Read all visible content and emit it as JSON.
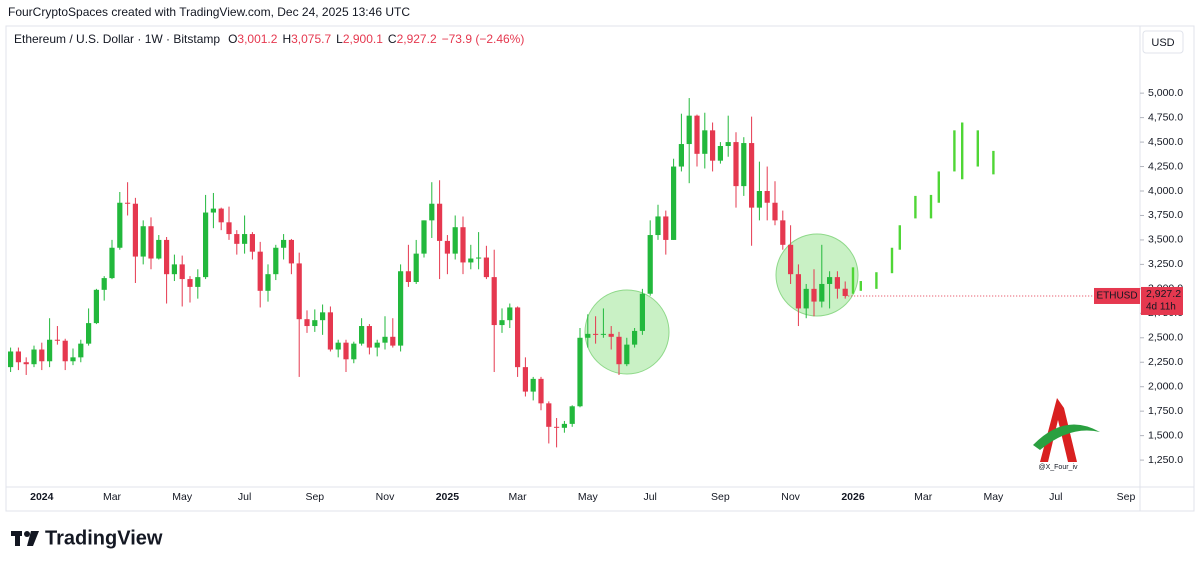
{
  "header": {
    "caption": "FourCryptoSpaces created with TradingView.com, Dec 24, 2025 13:46 UTC",
    "brand": "TradingView",
    "watermark": "@X_Four_iv"
  },
  "chart_data": {
    "type": "candlestick",
    "title": "Ethereum / U.S. Dollar · 1W · Bitstamp",
    "legend_values": [
      {
        "label": "O",
        "value": "3,001.2"
      },
      {
        "label": "H",
        "value": "3,075.7"
      },
      {
        "label": "L",
        "value": "2,900.1"
      },
      {
        "label": "C",
        "value": "2,927.2"
      }
    ],
    "change": "−73.9 (−2.46%)",
    "currency": "USD",
    "price_tag": {
      "symbol": "ETHUSD",
      "price": "2,927.2",
      "countdown": "4d 11h"
    },
    "up_color": "#22b83c",
    "down_color": "#e5384f",
    "categories": [
      null,
      null,
      null,
      null,
      "2024",
      null,
      null,
      null,
      null,
      null,
      null,
      null,
      null,
      "Mar",
      null,
      null,
      null,
      null,
      null,
      null,
      null,
      null,
      "May",
      null,
      null,
      null,
      null,
      null,
      null,
      null,
      "Jul",
      null,
      null,
      null,
      null,
      null,
      null,
      null,
      null,
      "Sep",
      null,
      null,
      null,
      null,
      null,
      null,
      null,
      null,
      "Nov",
      null,
      null,
      null,
      null,
      null,
      null,
      null,
      "2025",
      null,
      null,
      null,
      null,
      null,
      null,
      null,
      null,
      "Mar",
      null,
      null,
      null,
      null,
      null,
      null,
      null,
      null,
      "May",
      null,
      null,
      null,
      null,
      null,
      null,
      null,
      "Jul",
      null,
      null,
      null,
      null,
      null,
      null,
      null,
      null,
      "Sep",
      null,
      null,
      null,
      null,
      null,
      null,
      null,
      null,
      "Nov",
      null,
      null,
      null,
      null,
      null,
      null,
      null,
      "2026",
      null,
      null,
      null,
      null,
      null,
      null,
      null,
      null,
      "Mar",
      null,
      null,
      null,
      null,
      null,
      null,
      null,
      null,
      "May",
      null,
      null,
      null,
      null,
      null,
      null,
      null,
      "Jul",
      null,
      null,
      null,
      null,
      null,
      null,
      null,
      null,
      "Sep",
      null
    ],
    "open": [
      2200,
      2360,
      2250,
      2230,
      2380,
      2260,
      2480,
      2470,
      2260,
      2300,
      2440,
      2650,
      2990,
      3110,
      3420,
      3880,
      3870,
      3330,
      3640,
      3310,
      3500,
      3150,
      3250,
      3100,
      3020,
      3120,
      3780,
      3820,
      3680,
      3560,
      3460,
      3560,
      3380,
      2980,
      3150,
      3420,
      3500,
      3260,
      2690,
      2620,
      2680,
      2760,
      2380,
      2450,
      2280,
      2440,
      2620,
      2400,
      2450,
      2510,
      2420,
      3180,
      3070,
      3360,
      3700,
      3870,
      3490,
      3360,
      3630,
      3270,
      3310,
      3320,
      3120,
      2630,
      2680,
      2810,
      2200,
      1950,
      2080,
      1830,
      1590,
      1580,
      1620,
      1800,
      2500,
      2540,
      2530,
      2540,
      2510,
      2230,
      2430,
      2570,
      2950,
      3550,
      3740,
      3500,
      4250,
      4480,
      4770,
      4380,
      4620,
      4310,
      4460,
      4500,
      4050,
      4490,
      3830,
      4000,
      3880,
      3700,
      3450,
      3150,
      2800,
      3000,
      2870,
      3050,
      3120,
      3001.2,
      null,
      null,
      null,
      null,
      null,
      null,
      null,
      null,
      null,
      null,
      null,
      null,
      null,
      null,
      null,
      null,
      null,
      null,
      null,
      null,
      null,
      null,
      null,
      null,
      null,
      null,
      null,
      null,
      null,
      null,
      null,
      null,
      null,
      null,
      null,
      null,
      null
    ],
    "high": [
      2400,
      2400,
      2300,
      2420,
      2450,
      2700,
      2620,
      2490,
      2390,
      2480,
      2800,
      3000,
      3130,
      3500,
      3990,
      4090,
      3930,
      3700,
      3730,
      3550,
      3530,
      3350,
      3340,
      3130,
      3200,
      3960,
      3980,
      3830,
      3840,
      3600,
      3750,
      3580,
      3480,
      3250,
      3450,
      3560,
      3510,
      3370,
      2780,
      2790,
      2840,
      2820,
      2480,
      2480,
      2460,
      2700,
      2640,
      2480,
      2720,
      2700,
      3250,
      3450,
      3500,
      3700,
      4090,
      4110,
      3550,
      3750,
      3740,
      3450,
      3580,
      3440,
      3400,
      2800,
      2850,
      2820,
      2300,
      2100,
      2100,
      1850,
      1680,
      1650,
      1810,
      2600,
      2740,
      2720,
      2800,
      2620,
      2560,
      2500,
      2600,
      3000,
      3700,
      3860,
      3800,
      4330,
      4790,
      4950,
      4780,
      4800,
      4700,
      4500,
      4770,
      4600,
      4550,
      4760,
      4300,
      4250,
      4100,
      3800,
      3650,
      3250,
      3050,
      3200,
      3450,
      3180,
      3180,
      3075.7,
      null,
      null,
      null,
      null,
      null,
      null,
      null,
      null,
      null,
      null,
      null,
      null,
      null,
      null,
      null,
      null,
      null,
      null,
      null,
      null,
      null,
      null,
      null,
      null,
      null,
      null,
      null,
      null,
      null,
      null,
      null,
      null,
      null,
      null,
      null,
      null,
      null
    ],
    "low": [
      2150,
      2170,
      2120,
      2200,
      2170,
      2200,
      2430,
      2170,
      2220,
      2250,
      2420,
      2640,
      2880,
      3100,
      3400,
      3750,
      3060,
      3250,
      3200,
      3300,
      2850,
      3080,
      2820,
      2860,
      2900,
      3100,
      3620,
      3600,
      3500,
      3350,
      3360,
      3300,
      2810,
      2870,
      3090,
      3300,
      3150,
      2100,
      2550,
      2560,
      2530,
      2360,
      2300,
      2150,
      2240,
      2420,
      2330,
      2310,
      2380,
      2400,
      2360,
      3020,
      3050,
      3320,
      3520,
      3100,
      3150,
      3300,
      3150,
      3200,
      3200,
      3100,
      2150,
      2550,
      2600,
      2100,
      1900,
      1860,
      1760,
      1420,
      1380,
      1530,
      1590,
      1790,
      2400,
      2440,
      2500,
      2380,
      2120,
      2210,
      2400,
      2530,
      2930,
      3500,
      3350,
      3500,
      4200,
      4080,
      4250,
      4230,
      4200,
      4280,
      4350,
      3830,
      3950,
      3440,
      3700,
      3700,
      3650,
      3400,
      3050,
      2620,
      2700,
      2720,
      2810,
      2800,
      2900,
      2900.1,
      null,
      null,
      null,
      null,
      null,
      null,
      null,
      null,
      null,
      null,
      null,
      null,
      null,
      null,
      null,
      null,
      null,
      null,
      null,
      null,
      null,
      null,
      null,
      null,
      null,
      null,
      null,
      null,
      null,
      null,
      null,
      null,
      null,
      null,
      null,
      null,
      null
    ],
    "close": [
      2360,
      2250,
      2230,
      2380,
      2260,
      2480,
      2470,
      2260,
      2300,
      2440,
      2650,
      2990,
      3110,
      3420,
      3880,
      3870,
      3330,
      3640,
      3310,
      3500,
      3150,
      3250,
      3100,
      3020,
      3120,
      3780,
      3820,
      3680,
      3560,
      3460,
      3560,
      3380,
      2980,
      3150,
      3420,
      3500,
      3260,
      2690,
      2620,
      2680,
      2760,
      2380,
      2450,
      2280,
      2440,
      2620,
      2400,
      2450,
      2510,
      2420,
      3180,
      3070,
      3360,
      3700,
      3870,
      3490,
      3360,
      3630,
      3270,
      3310,
      3320,
      3120,
      2630,
      2680,
      2810,
      2200,
      1950,
      2080,
      1830,
      1590,
      1580,
      1620,
      1800,
      2500,
      2540,
      2530,
      2540,
      2510,
      2230,
      2430,
      2570,
      2950,
      3550,
      3740,
      3500,
      4250,
      4480,
      4770,
      4380,
      4620,
      4310,
      4460,
      4500,
      4050,
      4490,
      3830,
      4000,
      3880,
      3700,
      3450,
      3150,
      2800,
      3000,
      2870,
      3050,
      3120,
      3001.2,
      2927.2,
      null,
      null,
      null,
      null,
      null,
      null,
      null,
      null,
      null,
      null,
      null,
      null,
      null,
      null,
      null,
      null,
      null,
      null,
      null,
      null,
      null,
      null,
      null,
      null,
      null,
      null,
      null,
      null,
      null,
      null,
      null,
      null,
      null,
      null,
      null,
      null,
      null
    ],
    "projection": {
      "color": "#4fd636",
      "low": [
        null,
        null,
        null,
        null,
        null,
        null,
        null,
        null,
        null,
        null,
        null,
        null,
        null,
        null,
        null,
        null,
        null,
        null,
        null,
        null,
        null,
        null,
        null,
        null,
        null,
        null,
        null,
        null,
        null,
        null,
        null,
        null,
        null,
        null,
        null,
        null,
        null,
        null,
        null,
        null,
        null,
        null,
        null,
        null,
        null,
        null,
        null,
        null,
        null,
        null,
        null,
        null,
        null,
        null,
        null,
        null,
        null,
        null,
        null,
        null,
        null,
        null,
        null,
        null,
        null,
        null,
        null,
        null,
        null,
        null,
        null,
        null,
        null,
        null,
        null,
        null,
        null,
        null,
        null,
        null,
        null,
        null,
        null,
        null,
        null,
        null,
        null,
        null,
        null,
        null,
        null,
        null,
        null,
        null,
        null,
        null,
        null,
        null,
        null,
        null,
        null,
        null,
        null,
        null,
        null,
        null,
        null,
        null,
        2950,
        2980,
        null,
        3000,
        null,
        3160,
        3400,
        null,
        3720,
        null,
        3720,
        3880,
        null,
        4200,
        4120,
        null,
        4250,
        null,
        4170,
        null,
        null,
        null,
        null,
        null,
        null,
        null,
        null,
        null,
        null,
        null,
        null,
        null,
        null,
        null,
        null,
        null,
        null
      ],
      "high": [
        null,
        null,
        null,
        null,
        null,
        null,
        null,
        null,
        null,
        null,
        null,
        null,
        null,
        null,
        null,
        null,
        null,
        null,
        null,
        null,
        null,
        null,
        null,
        null,
        null,
        null,
        null,
        null,
        null,
        null,
        null,
        null,
        null,
        null,
        null,
        null,
        null,
        null,
        null,
        null,
        null,
        null,
        null,
        null,
        null,
        null,
        null,
        null,
        null,
        null,
        null,
        null,
        null,
        null,
        null,
        null,
        null,
        null,
        null,
        null,
        null,
        null,
        null,
        null,
        null,
        null,
        null,
        null,
        null,
        null,
        null,
        null,
        null,
        null,
        null,
        null,
        null,
        null,
        null,
        null,
        null,
        null,
        null,
        null,
        null,
        null,
        null,
        null,
        null,
        null,
        null,
        null,
        null,
        null,
        null,
        null,
        null,
        null,
        null,
        null,
        null,
        null,
        null,
        null,
        null,
        null,
        null,
        null,
        3220,
        3080,
        null,
        3170,
        null,
        3420,
        3650,
        null,
        3950,
        null,
        3960,
        4200,
        null,
        4620,
        4700,
        null,
        4620,
        null,
        4410,
        null,
        null,
        null,
        null,
        null,
        null,
        null,
        null,
        null,
        null,
        null,
        null,
        null,
        null,
        null,
        null,
        null,
        null
      ]
    },
    "ylim": [
      975,
      5625
    ],
    "yticks": [
      {
        "value": 1250,
        "label": "1,250.0"
      },
      {
        "value": 1500,
        "label": "1,500.0"
      },
      {
        "value": 1750,
        "label": "1,750.0"
      },
      {
        "value": 2000,
        "label": "2,000.0"
      },
      {
        "value": 2250,
        "label": "2,250.0"
      },
      {
        "value": 2500,
        "label": "2,500.0"
      },
      {
        "value": 2750,
        "label": "2,750.0"
      },
      {
        "value": 3000,
        "label": "3,000.0"
      },
      {
        "value": 3250,
        "label": "3,250.0"
      },
      {
        "value": 3500,
        "label": "3,500.0"
      },
      {
        "value": 3750,
        "label": "3,750.0"
      },
      {
        "value": 4000,
        "label": "4,000.0"
      },
      {
        "value": 4250,
        "label": "4,250.0"
      },
      {
        "value": 4500,
        "label": "4,500.0"
      },
      {
        "value": 4750,
        "label": "4,750.0"
      },
      {
        "value": 5000,
        "label": "5,000.0"
      }
    ],
    "grid": false
  }
}
